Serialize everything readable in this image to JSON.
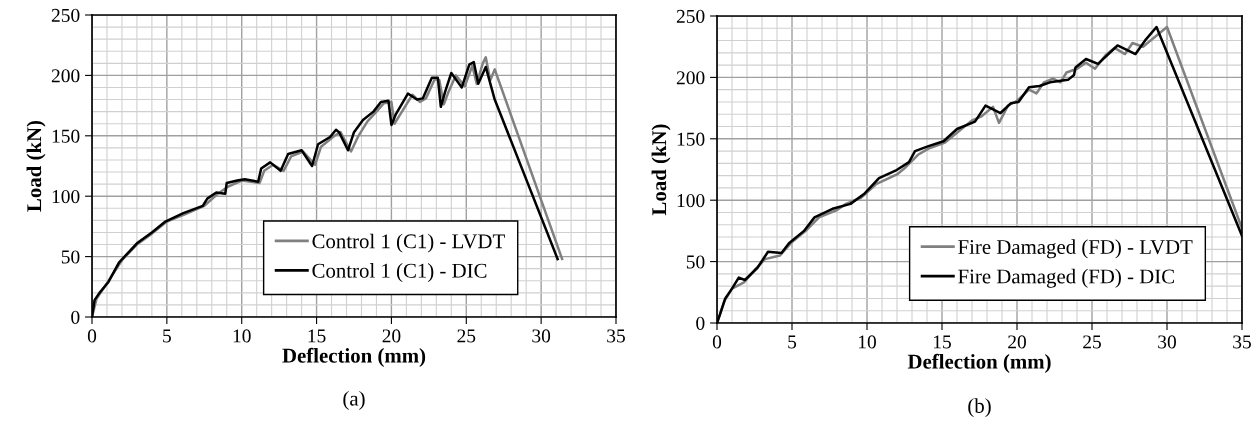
{
  "chart_data": [
    {
      "type": "line",
      "xlabel": "Deflection (mm)",
      "ylabel": "Load (kN)",
      "xlim": [
        0,
        35
      ],
      "ylim": [
        0,
        250
      ],
      "xticks": [
        0,
        5,
        10,
        15,
        20,
        25,
        30,
        35
      ],
      "yticks": [
        0,
        50,
        100,
        150,
        200,
        250
      ],
      "grid": true,
      "legend": "bottom",
      "marker": "none",
      "line_style": "solid",
      "annotations": [
        "(a)"
      ],
      "series": [
        {
          "name": "Control 1 (C1) - LVDT",
          "color": "#808080",
          "x": [
            0,
            0.3,
            1.0,
            2.0,
            3.0,
            4.0,
            5.0,
            6.2,
            7.5,
            8.4,
            9.1,
            10.0,
            11.2,
            11.5,
            12.1,
            12.8,
            13.3,
            14.1,
            14.9,
            15.3,
            16.2,
            16.6,
            17.3,
            17.8,
            18.4,
            19.0,
            19.5,
            20.0,
            20.2,
            20.6,
            21.4,
            21.9,
            22.3,
            22.9,
            23.2,
            23.5,
            23.8,
            24.3,
            24.9,
            25.4,
            25.7,
            26.1,
            26.3,
            26.6,
            26.9,
            31.4
          ],
          "values": [
            0,
            15,
            28,
            47,
            60,
            69,
            79,
            85,
            92,
            102,
            108,
            113,
            111,
            121,
            126,
            121,
            133,
            137,
            126,
            141,
            150,
            153,
            137,
            150,
            162,
            170,
            177,
            178,
            160,
            168,
            184,
            178,
            181,
            197,
            196,
            176,
            186,
            200,
            191,
            208,
            193,
            210,
            215,
            196,
            205,
            48
          ]
        },
        {
          "name": "Control 1 (C1) - DIC",
          "color": "#000000",
          "x": [
            0,
            0.17,
            0.5,
            1.1,
            1.8,
            3.0,
            4.0,
            4.9,
            6.1,
            7.4,
            7.7,
            8.3,
            8.9,
            9.0,
            9.7,
            10.2,
            11.1,
            11.3,
            11.9,
            12.6,
            13.1,
            14.0,
            14.7,
            15.1,
            15.9,
            16.3,
            16.5,
            17.1,
            17.5,
            18.1,
            18.8,
            19.3,
            19.8,
            20.0,
            20.3,
            21.1,
            21.7,
            22.1,
            22.7,
            23.1,
            23.3,
            23.6,
            24.0,
            24.7,
            25.2,
            25.5,
            25.8,
            26.3,
            26.9,
            31.1
          ],
          "values": [
            0,
            14,
            20,
            29,
            45,
            61,
            70,
            79,
            86,
            92,
            98,
            103,
            102,
            111,
            113,
            114,
            112,
            123,
            128,
            121,
            135,
            138,
            125,
            143,
            149,
            155,
            153,
            138,
            153,
            163,
            170,
            178,
            179,
            159,
            168,
            185,
            180,
            181,
            198,
            198,
            174,
            187,
            202,
            190,
            209,
            211,
            193,
            207,
            180,
            48
          ]
        }
      ]
    },
    {
      "type": "line",
      "xlabel": "Deflection (mm)",
      "ylabel": "Load (kN)",
      "xlim": [
        0,
        35
      ],
      "ylim": [
        0,
        250
      ],
      "xticks": [
        0,
        5,
        10,
        15,
        20,
        25,
        30,
        35
      ],
      "yticks": [
        0,
        50,
        100,
        150,
        200,
        250
      ],
      "grid": true,
      "legend": "bottom right",
      "marker": "none",
      "line_style": "solid",
      "annotations": [
        "(b)"
      ],
      "series": [
        {
          "name": "Fire Damaged (FD) - LVDT",
          "color": "#808080",
          "x": [
            0,
            0.5,
            1.0,
            1.8,
            2.5,
            3.2,
            4.2,
            5.0,
            6.0,
            6.8,
            8.0,
            8.6,
            9.6,
            10.6,
            12.0,
            12.5,
            13.4,
            14.1,
            15.2,
            16.1,
            17.0,
            17.6,
            18.4,
            18.8,
            19.4,
            20.0,
            20.8,
            21.3,
            21.8,
            22.4,
            22.9,
            23.3,
            24.0,
            24.6,
            25.2,
            25.9,
            26.5,
            27.2,
            27.7,
            28.4,
            30.0,
            35
          ],
          "values": [
            0,
            18,
            28,
            33,
            43,
            52,
            55,
            66,
            76,
            86,
            92,
            97,
            102,
            113,
            121,
            126,
            137,
            142,
            147,
            156,
            165,
            168,
            176,
            163,
            177,
            181,
            190,
            187,
            196,
            199,
            196,
            204,
            207,
            212,
            207,
            218,
            224,
            219,
            228,
            225,
            241,
            77
          ]
        },
        {
          "name": "Fire Damaged (FD) - DIC",
          "color": "#000000",
          "x": [
            0,
            0.2,
            0.55,
            1.0,
            1.45,
            1.86,
            2.7,
            3.4,
            4.3,
            4.8,
            5.8,
            6.5,
            7.7,
            8.9,
            9.8,
            10.8,
            11.9,
            12.8,
            13.2,
            14.1,
            15.1,
            16.0,
            17.2,
            17.9,
            18.9,
            19.6,
            20.1,
            20.8,
            21.5,
            22.2,
            23.4,
            23.8,
            23.9,
            24.6,
            25.4,
            26.7,
            27.9,
            28.6,
            29.3,
            35
          ],
          "values": [
            0,
            7,
            20,
            28,
            37,
            35,
            45,
            58,
            57,
            65,
            75,
            86,
            93,
            97,
            105,
            118,
            124,
            131,
            140,
            144,
            148,
            158,
            164,
            177,
            171,
            179,
            180,
            192,
            193,
            196,
            198,
            202,
            208,
            215,
            211,
            226,
            219,
            231,
            241,
            71
          ]
        }
      ]
    }
  ]
}
